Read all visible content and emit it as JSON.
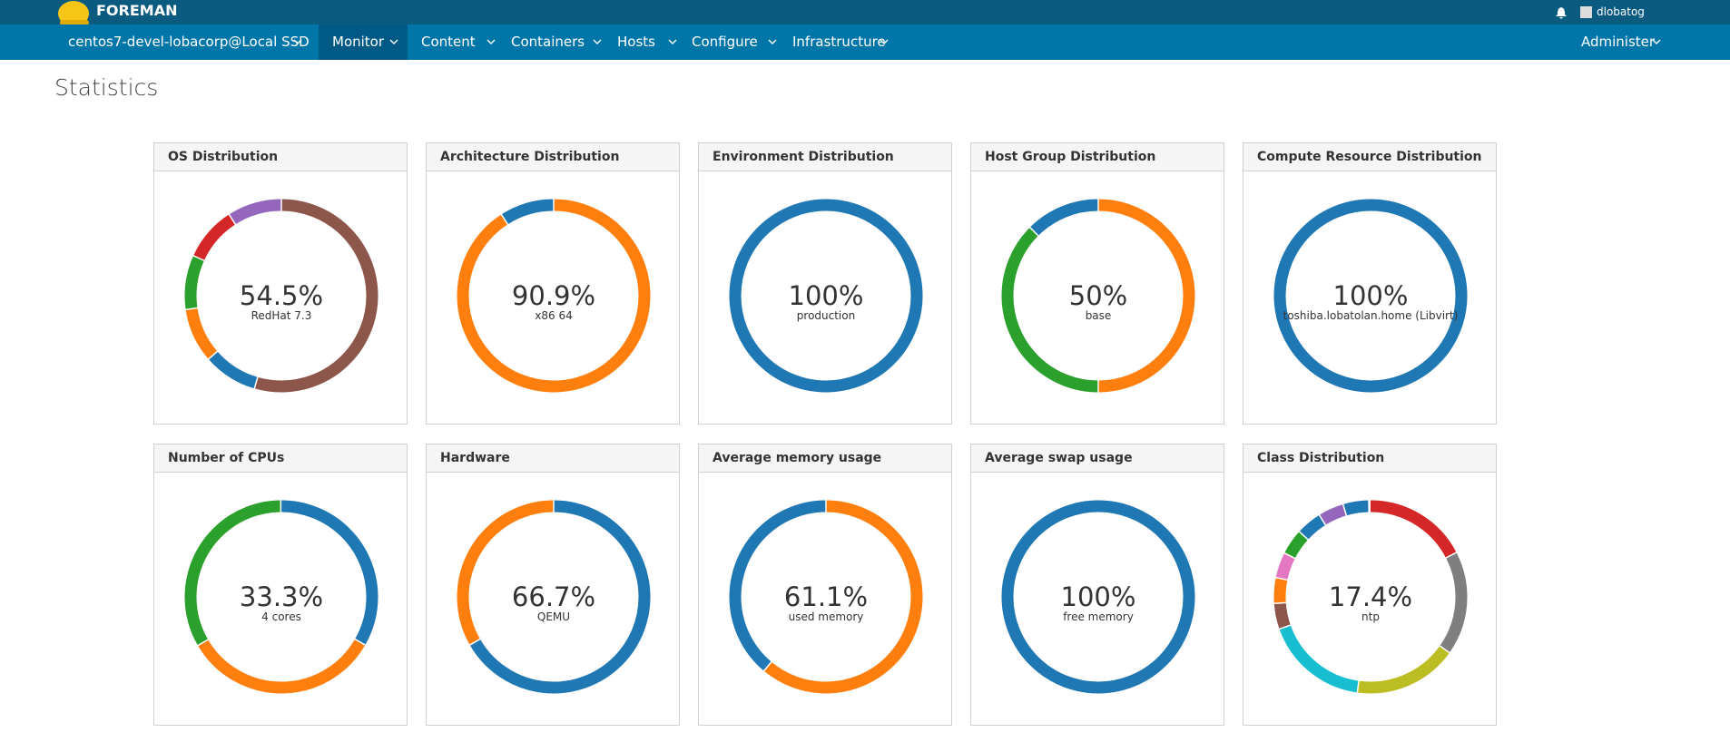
{
  "header": {
    "brand": "FOREMAN",
    "user": "dlobatog",
    "context": "centos7-devel-lobacorp@Local SSD",
    "menu": [
      "Monitor",
      "Content",
      "Containers",
      "Hosts",
      "Configure",
      "Infrastructure"
    ],
    "admin": "Administer"
  },
  "page_title": "Statistics",
  "panels": [
    {
      "title": "OS Distribution",
      "center_value": "54.5%",
      "center_label": "RedHat 7.3",
      "segments": [
        {
          "color": "#8c564b",
          "value": 54.5
        },
        {
          "color": "#1f77b4",
          "value": 9.1
        },
        {
          "color": "#ff7f0e",
          "value": 9.1
        },
        {
          "color": "#2ca02c",
          "value": 9.1
        },
        {
          "color": "#d62728",
          "value": 9.1
        },
        {
          "color": "#9467bd",
          "value": 9.1
        }
      ]
    },
    {
      "title": "Architecture Distribution",
      "center_value": "90.9%",
      "center_label": "x86 64",
      "segments": [
        {
          "color": "#ff7f0e",
          "value": 90.9
        },
        {
          "color": "#1f77b4",
          "value": 9.1
        }
      ]
    },
    {
      "title": "Environment Distribution",
      "center_value": "100%",
      "center_label": "production",
      "segments": [
        {
          "color": "#1f77b4",
          "value": 100
        }
      ]
    },
    {
      "title": "Host Group Distribution",
      "center_value": "50%",
      "center_label": "base",
      "segments": [
        {
          "color": "#ff7f0e",
          "value": 50
        },
        {
          "color": "#2ca02c",
          "value": 37.5
        },
        {
          "color": "#1f77b4",
          "value": 12.5
        }
      ]
    },
    {
      "title": "Compute Resource Distribution",
      "center_value": "100%",
      "center_label": "toshiba.lobatolan.home (Libvirt)",
      "segments": [
        {
          "color": "#1f77b4",
          "value": 100
        }
      ]
    },
    {
      "title": "Number of CPUs",
      "center_value": "33.3%",
      "center_label": "4 cores",
      "segments": [
        {
          "color": "#1f77b4",
          "value": 33.3
        },
        {
          "color": "#ff7f0e",
          "value": 33.3
        },
        {
          "color": "#2ca02c",
          "value": 33.3
        }
      ]
    },
    {
      "title": "Hardware",
      "center_value": "66.7%",
      "center_label": "QEMU",
      "segments": [
        {
          "color": "#1f77b4",
          "value": 66.7
        },
        {
          "color": "#ff7f0e",
          "value": 33.3
        }
      ]
    },
    {
      "title": "Average memory usage",
      "center_value": "61.1%",
      "center_label": "used memory",
      "segments": [
        {
          "color": "#ff7f0e",
          "value": 61.1
        },
        {
          "color": "#1f77b4",
          "value": 38.9
        }
      ]
    },
    {
      "title": "Average swap usage",
      "center_value": "100%",
      "center_label": "free memory",
      "segments": [
        {
          "color": "#1f77b4",
          "value": 100
        }
      ]
    },
    {
      "title": "Class Distribution",
      "center_value": "17.4%",
      "center_label": "ntp",
      "segments": [
        {
          "color": "#d62728",
          "value": 17.4
        },
        {
          "color": "#7f7f7f",
          "value": 17.4
        },
        {
          "color": "#bcbd22",
          "value": 17.4
        },
        {
          "color": "#17becf",
          "value": 17.4
        },
        {
          "color": "#8c564b",
          "value": 4.3
        },
        {
          "color": "#ff7f0e",
          "value": 4.3
        },
        {
          "color": "#e377c2",
          "value": 4.3
        },
        {
          "color": "#2ca02c",
          "value": 4.3
        },
        {
          "color": "#1f77b4",
          "value": 4.3
        },
        {
          "color": "#9467bd",
          "value": 4.3
        },
        {
          "color": "#1f77b4",
          "value": 4.3
        }
      ]
    }
  ]
}
